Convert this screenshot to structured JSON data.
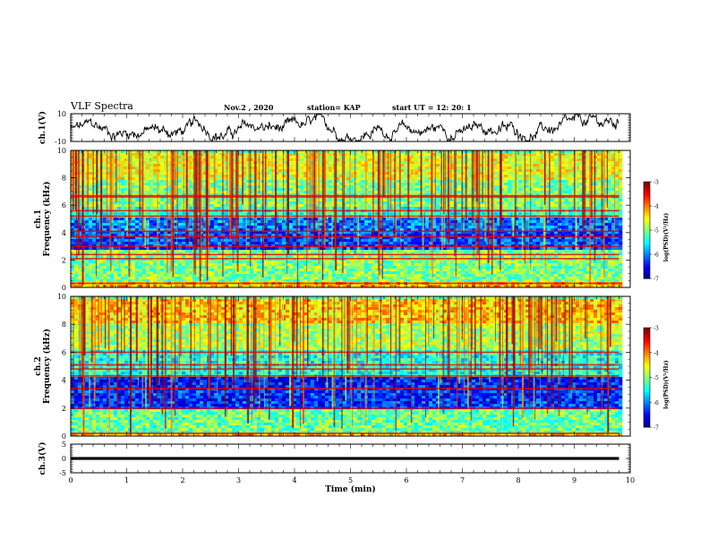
{
  "header": {
    "title": "VLF Spectra",
    "date": "Nov.2 , 2020",
    "station": "station= KAP",
    "start": "start UT = 12: 20: 1"
  },
  "chart_data": [
    {
      "type": "line",
      "panel": "ch1-waveform",
      "ylabel": "ch.1(V)",
      "ylim": [
        -10,
        10
      ],
      "yticks": [
        "10",
        "-10"
      ],
      "xlim": [
        0,
        10
      ],
      "color": "#000000"
    },
    {
      "type": "heatmap",
      "panel": "ch1-spectrogram",
      "ylabel": "ch.1\nFrequency (kHz)",
      "ylim": [
        0,
        10
      ],
      "yticks": [
        "0",
        "2",
        "4",
        "6",
        "8",
        "10"
      ],
      "xlim": [
        0,
        10
      ],
      "data_end_min": 9.8,
      "colorbar": {
        "ticks": [
          "-3",
          "-4",
          "-5",
          "-6",
          "-7"
        ],
        "range": [
          -7,
          -3
        ],
        "label": "log(PSD)(V²/Hz)"
      },
      "bands_khz": [
        {
          "lo": 0.0,
          "hi": 0.4,
          "level": -4.2
        },
        {
          "lo": 0.4,
          "hi": 2.8,
          "level": -5.0
        },
        {
          "lo": 2.8,
          "hi": 4.2,
          "level": -6.2
        },
        {
          "lo": 4.2,
          "hi": 5.2,
          "level": -6.0
        },
        {
          "lo": 5.2,
          "hi": 6.0,
          "level": -5.3
        },
        {
          "lo": 6.0,
          "hi": 8.0,
          "level": -5.0
        },
        {
          "lo": 8.0,
          "hi": 10.0,
          "level": -4.6
        }
      ],
      "lines_khz": [
        0.3,
        2.1,
        2.4,
        3.0,
        3.7,
        4.1,
        5.2,
        5.6,
        6.6,
        6.7
      ]
    },
    {
      "type": "heatmap",
      "panel": "ch2-spectrogram",
      "ylabel": "ch.2\nFrequency (kHz)",
      "ylim": [
        0,
        10
      ],
      "yticks": [
        "0",
        "2",
        "4",
        "6",
        "8",
        "10"
      ],
      "xlim": [
        0,
        10
      ],
      "data_end_min": 9.8,
      "colorbar": {
        "ticks": [
          "-3",
          "-4",
          "-5",
          "-6",
          "-7"
        ],
        "range": [
          -7,
          -3
        ],
        "label": "log(PSD)(V²/Hz)"
      },
      "bands_khz": [
        {
          "lo": 0.0,
          "hi": 0.3,
          "level": -4.2
        },
        {
          "lo": 0.3,
          "hi": 2.0,
          "level": -5.1
        },
        {
          "lo": 2.0,
          "hi": 3.4,
          "level": -6.3
        },
        {
          "lo": 3.4,
          "hi": 4.4,
          "level": -6.4
        },
        {
          "lo": 4.4,
          "hi": 6.2,
          "level": -5.4
        },
        {
          "lo": 6.2,
          "hi": 8.2,
          "level": -4.8
        },
        {
          "lo": 8.2,
          "hi": 10.0,
          "level": -4.3
        }
      ],
      "lines_khz": [
        0.2,
        2.0,
        3.4,
        4.3,
        4.8,
        5.1,
        6.0
      ]
    },
    {
      "type": "line",
      "panel": "ch3-waveform",
      "ylabel": "ch.3(V)",
      "ylim": [
        -5,
        5
      ],
      "yticks": [
        "5",
        "0",
        "-5"
      ],
      "xlim": [
        0,
        10
      ],
      "xlabel": "Time (min)",
      "xticks": [
        "0",
        "1",
        "2",
        "3",
        "4",
        "5",
        "6",
        "7",
        "8",
        "9",
        "10"
      ],
      "band": [
        -0.5,
        0.5
      ],
      "color": "#000000"
    }
  ]
}
